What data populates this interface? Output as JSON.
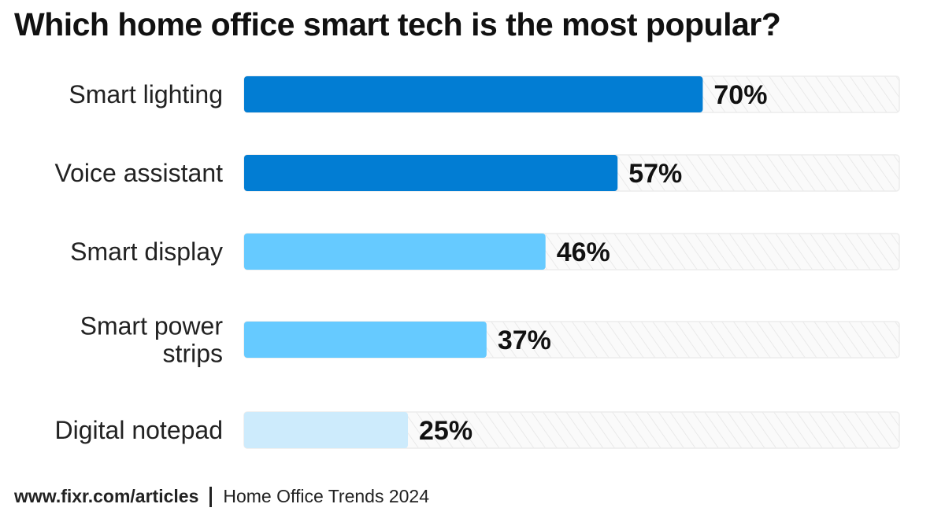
{
  "chart_data": {
    "type": "bar",
    "orientation": "horizontal",
    "title": "Which home office smart tech is the most popular?",
    "categories": [
      [
        "Smart lighting"
      ],
      [
        "Voice assistant"
      ],
      [
        "Smart display"
      ],
      [
        "Smart power",
        "strips"
      ],
      [
        "Digital notepad"
      ]
    ],
    "values": [
      70,
      57,
      46,
      37,
      25
    ],
    "labels": [
      "70%",
      "57%",
      "46%",
      "37%",
      "25%"
    ],
    "xlim": [
      0,
      100
    ],
    "bar_colors": [
      "#027dd3",
      "#027dd3",
      "#66caff",
      "#66caff",
      "#cdebfc"
    ],
    "track_color": "#f4f4f4",
    "grid": false
  },
  "footer": {
    "source": "www.fixr.com/articles",
    "note": "Home Office Trends 2024"
  }
}
